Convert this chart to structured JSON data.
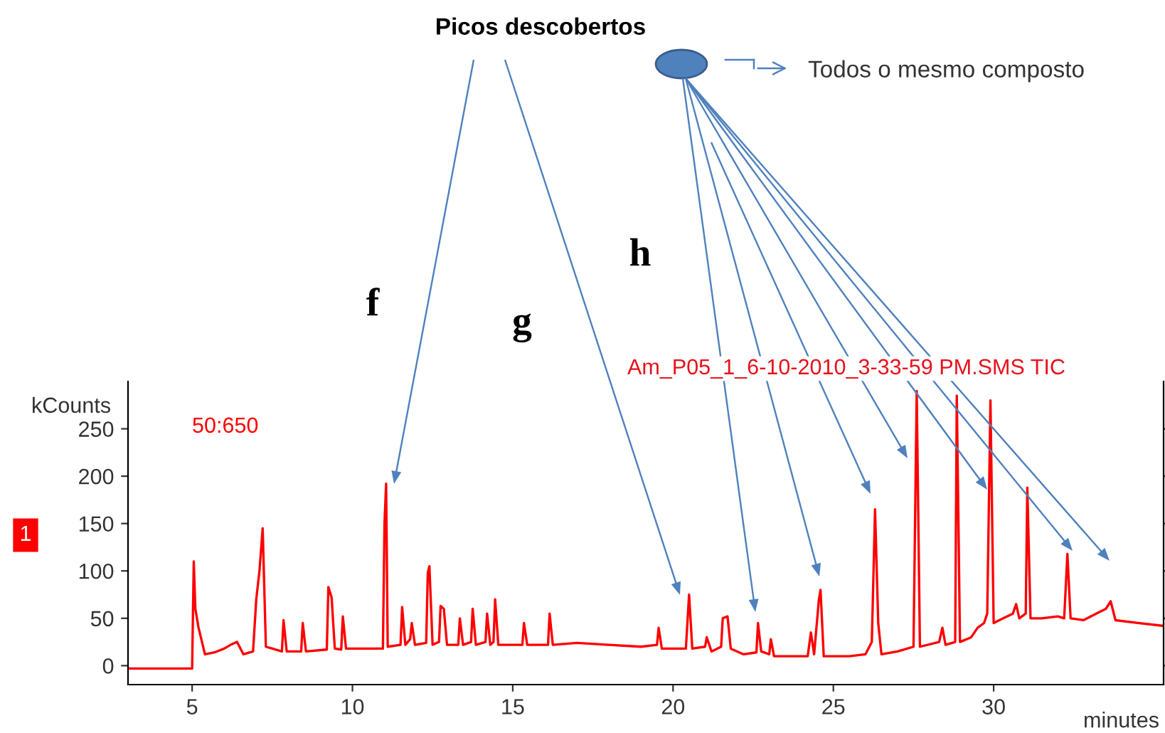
{
  "chart_data": {
    "type": "line",
    "xlabel": "minutes",
    "ylabel": "kCounts",
    "xlim": [
      3,
      35.3
    ],
    "xticks": [
      5,
      10,
      15,
      20,
      25,
      30
    ],
    "ylim": [
      -20,
      300
    ],
    "yticks": [
      0,
      50,
      100,
      150,
      200,
      250
    ],
    "grid": false,
    "legend": false,
    "marker": "none",
    "line_style": "solid",
    "annotations": [
      "Picos descobertos",
      "Todos o mesmo composto",
      "f",
      "g",
      "h",
      "50:650",
      "Am_P05_1_6-10-2010_3-33-59 PM.SMS TIC",
      "1"
    ],
    "series": [
      {
        "color": "#ff0000",
        "x": [
          3,
          5.0,
          5.05,
          5.1,
          5.2,
          5.4,
          5.7,
          6.0,
          6.2,
          6.4,
          6.6,
          6.9,
          7.0,
          7.1,
          7.2,
          7.3,
          7.5,
          7.8,
          7.85,
          7.95,
          8.4,
          8.45,
          8.55,
          9.2,
          9.25,
          9.35,
          9.45,
          9.65,
          9.7,
          9.8,
          10.5,
          10.95,
          11.0,
          11.05,
          11.1,
          11.5,
          11.55,
          11.65,
          11.8,
          11.85,
          11.95,
          12.3,
          12.35,
          12.4,
          12.5,
          12.7,
          12.75,
          12.85,
          12.95,
          13.3,
          13.35,
          13.45,
          13.7,
          13.75,
          13.85,
          14.15,
          14.2,
          14.3,
          14.4,
          14.45,
          14.55,
          15.3,
          15.35,
          15.45,
          16.1,
          16.15,
          16.25,
          17.0,
          18.0,
          19.0,
          19.5,
          19.55,
          19.65,
          20.4,
          20.5,
          20.6,
          21.0,
          21.05,
          21.2,
          21.5,
          21.55,
          21.7,
          21.8,
          22.2,
          22.6,
          22.65,
          22.75,
          23.0,
          23.05,
          23.15,
          24.2,
          24.3,
          24.4,
          24.55,
          24.6,
          24.7,
          25.5,
          26.0,
          26.2,
          26.3,
          26.4,
          26.5,
          27.0,
          27.5,
          27.6,
          27.7,
          28.3,
          28.4,
          28.5,
          28.8,
          28.85,
          28.95,
          29.3,
          29.5,
          29.7,
          29.8,
          29.9,
          30.0,
          30.3,
          30.6,
          30.7,
          30.8,
          31.0,
          31.05,
          31.15,
          31.5,
          32.0,
          32.2,
          32.3,
          32.4,
          32.8,
          33.2,
          33.5,
          33.65,
          33.8,
          34.5,
          35.3
        ],
        "values": [
          -3,
          -3,
          110,
          60,
          40,
          12,
          14,
          18,
          22,
          25,
          12,
          15,
          70,
          100,
          145,
          20,
          18,
          15,
          48,
          15,
          15,
          45,
          15,
          17,
          83,
          72,
          18,
          17,
          52,
          18,
          18,
          18,
          150,
          192,
          20,
          22,
          62,
          22,
          28,
          45,
          22,
          24,
          98,
          105,
          22,
          25,
          63,
          60,
          22,
          22,
          50,
          22,
          25,
          60,
          22,
          25,
          55,
          22,
          25,
          70,
          22,
          22,
          45,
          22,
          22,
          55,
          22,
          24,
          22,
          20,
          22,
          40,
          18,
          18,
          75,
          18,
          20,
          30,
          15,
          20,
          50,
          52,
          18,
          12,
          14,
          45,
          15,
          12,
          28,
          10,
          10,
          35,
          12,
          70,
          80,
          10,
          10,
          12,
          25,
          165,
          45,
          12,
          15,
          20,
          290,
          20,
          25,
          40,
          22,
          25,
          285,
          25,
          30,
          40,
          45,
          55,
          280,
          45,
          50,
          55,
          65,
          50,
          55,
          188,
          50,
          50,
          52,
          50,
          118,
          50,
          48,
          55,
          60,
          68,
          48,
          45,
          42
        ]
      }
    ]
  }
}
